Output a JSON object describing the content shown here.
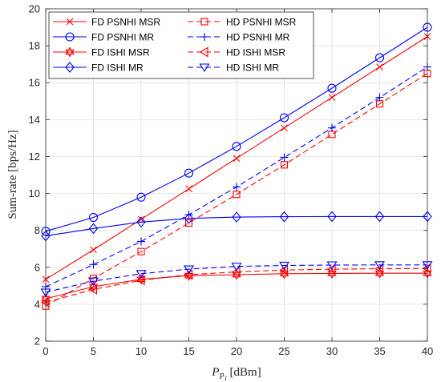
{
  "chart_data": {
    "type": "line",
    "xlabel_main": "P",
    "xlabel_sub1": "P",
    "xlabel_sub2": "1",
    "xlabel_unit": "[dBm]",
    "ylabel": "Sum-rate [bps/Hz]",
    "xlim": [
      0,
      40
    ],
    "ylim": [
      2,
      20
    ],
    "x_ticks": [
      0,
      5,
      10,
      15,
      20,
      25,
      30,
      35,
      40
    ],
    "y_ticks": [
      2,
      4,
      6,
      8,
      10,
      12,
      14,
      16,
      18,
      20
    ],
    "grid": true,
    "legend_position": "top-left",
    "legend_columns": 2,
    "x": [
      0,
      5,
      10,
      15,
      20,
      25,
      30,
      35,
      40
    ],
    "series": [
      {
        "name": "FD PSNHI MSR",
        "color": "#ff0000",
        "dash": "solid",
        "marker": "x",
        "values": [
          5.35,
          6.95,
          8.6,
          10.25,
          11.9,
          13.55,
          15.2,
          16.85,
          18.5
        ]
      },
      {
        "name": "FD PSNHI MR",
        "color": "#0000ff",
        "dash": "solid",
        "marker": "circle",
        "values": [
          7.95,
          8.7,
          9.8,
          11.1,
          12.55,
          14.1,
          15.7,
          17.35,
          19.0
        ]
      },
      {
        "name": "FD ISHI MSR",
        "color": "#ff0000",
        "dash": "solid",
        "marker": "hexagram",
        "values": [
          4.3,
          4.95,
          5.35,
          5.55,
          5.6,
          5.65,
          5.67,
          5.68,
          5.68
        ]
      },
      {
        "name": "FD ISHI MR",
        "color": "#0000ff",
        "dash": "solid",
        "marker": "diamond",
        "values": [
          7.7,
          8.1,
          8.45,
          8.65,
          8.72,
          8.74,
          8.75,
          8.75,
          8.75
        ]
      },
      {
        "name": "HD PSNHI MSR",
        "color": "#ff0000",
        "dash": "dashed",
        "marker": "square",
        "values": [
          3.9,
          5.4,
          6.85,
          8.4,
          9.95,
          11.55,
          13.2,
          14.85,
          16.5
        ]
      },
      {
        "name": "HD PSNHI MR",
        "color": "#0000ff",
        "dash": "dashed",
        "marker": "plus",
        "values": [
          4.95,
          6.15,
          7.4,
          8.85,
          10.35,
          11.95,
          13.55,
          15.2,
          16.85
        ]
      },
      {
        "name": "HD ISHI MSR",
        "color": "#ff0000",
        "dash": "dashed",
        "marker": "triangle-left",
        "values": [
          4.1,
          4.8,
          5.3,
          5.6,
          5.75,
          5.85,
          5.9,
          5.92,
          5.93
        ]
      },
      {
        "name": "HD ISHI MR",
        "color": "#0000ff",
        "dash": "dashed",
        "marker": "triangle-down",
        "values": [
          4.65,
          5.25,
          5.65,
          5.9,
          6.05,
          6.1,
          6.12,
          6.13,
          6.13
        ]
      }
    ]
  }
}
